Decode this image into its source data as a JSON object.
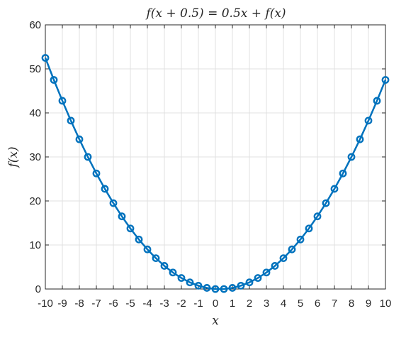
{
  "chart_data": {
    "type": "line",
    "title": "f(x + 0.5) = 0.5x + f(x)",
    "xlabel": "x",
    "ylabel": "f(x)",
    "xlim": [
      -10,
      10
    ],
    "ylim": [
      0,
      60
    ],
    "grid": true,
    "x_ticks": [
      "-10",
      "-9",
      "-8",
      "-7",
      "-6",
      "-5",
      "-4",
      "-3",
      "-2",
      "-1",
      "0",
      "1",
      "2",
      "3",
      "4",
      "5",
      "6",
      "7",
      "8",
      "9",
      "10"
    ],
    "y_ticks": [
      "0",
      "10",
      "20",
      "30",
      "40",
      "50",
      "60"
    ],
    "line_color": "#0072BD",
    "series": [
      {
        "x": [
          -10,
          -9.5,
          -9,
          -8.5,
          -8,
          -7.5,
          -7,
          -6.5,
          -6,
          -5.5,
          -5,
          -4.5,
          -4,
          -3.5,
          -3,
          -2.5,
          -2,
          -1.5,
          -1,
          -0.5,
          0,
          0.5,
          1,
          1.5,
          2,
          2.5,
          3,
          3.5,
          4,
          4.5,
          5,
          5.5,
          6,
          6.5,
          7,
          7.5,
          8,
          8.5,
          9,
          9.5,
          10
        ],
        "y": [
          52.5,
          47.5,
          42.75,
          38.25,
          34,
          30,
          26.25,
          22.75,
          19.5,
          16.5,
          13.75,
          11.25,
          9,
          7,
          5.25,
          3.75,
          2.5,
          1.5,
          0.75,
          0.25,
          0,
          0,
          0.25,
          0.75,
          1.5,
          2.5,
          3.75,
          5.25,
          7,
          9,
          11.25,
          13.75,
          16.5,
          19.5,
          22.75,
          26.25,
          30,
          34,
          38.25,
          42.75,
          47.5
        ]
      }
    ]
  }
}
